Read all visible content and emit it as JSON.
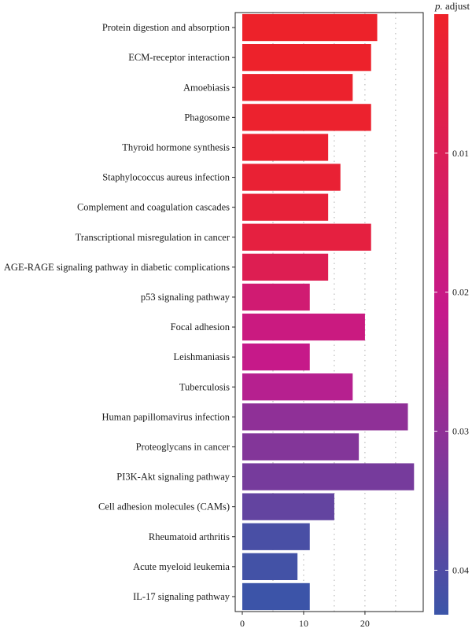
{
  "chart_data": {
    "type": "bar",
    "orientation": "horizontal",
    "title": "",
    "xlabel": "",
    "ylabel": "",
    "xlim": [
      0,
      29.5
    ],
    "x_ticks": [
      0,
      10,
      20
    ],
    "grid": true,
    "categories": [
      "Protein digestion and absorption",
      "ECM-receptor interaction",
      "Amoebiasis",
      "Phagosome",
      "Thyroid hormone synthesis",
      "Staphylococcus aureus infection",
      "Complement and coagulation cascades",
      "Transcriptional misregulation in cancer",
      "AGE-RAGE signaling pathway in diabetic complications",
      "p53 signaling pathway",
      "Focal adhesion",
      "Leishmaniasis",
      "Tuberculosis",
      "Human papillomavirus infection",
      "Proteoglycans in cancer",
      "PI3K-Akt signaling pathway",
      "Cell adhesion molecules (CAMs)",
      "Rheumatoid arthritis",
      "Acute myeloid leukemia",
      "IL-17 signaling pathway"
    ],
    "values": [
      22,
      21,
      18,
      21,
      14,
      16,
      14,
      21,
      14,
      11,
      20,
      11,
      18,
      27,
      19,
      28,
      15,
      11,
      9,
      11
    ],
    "p_adjust": [
      0.0003,
      0.0005,
      0.0008,
      0.001,
      0.0015,
      0.0025,
      0.0035,
      0.005,
      0.009,
      0.016,
      0.019,
      0.021,
      0.024,
      0.03,
      0.032,
      0.034,
      0.037,
      0.041,
      0.042,
      0.043
    ],
    "legend": {
      "title_prefix": "p.",
      "title_suffix": " adjust",
      "position": "right",
      "range": [
        0,
        0.0432
      ],
      "ticks": [
        {
          "value": 0.01,
          "label": "0.01"
        },
        {
          "value": 0.02,
          "label": "0.02"
        },
        {
          "value": 0.03,
          "label": "0.03"
        },
        {
          "value": 0.04,
          "label": "0.04"
        }
      ],
      "color_low": "#ee2229",
      "color_mid": "#c5198c",
      "color_high": "#3b55a8"
    }
  }
}
